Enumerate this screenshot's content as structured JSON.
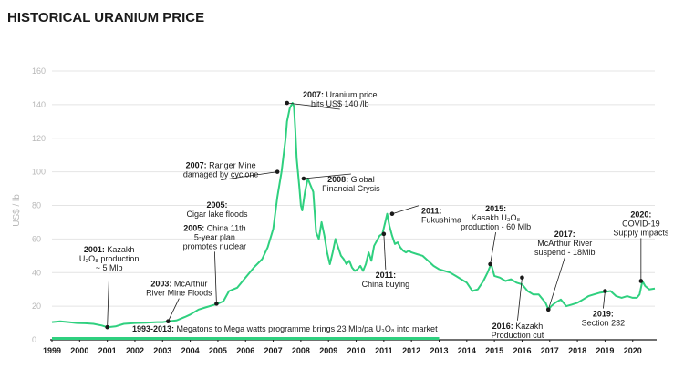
{
  "chart_data": {
    "type": "line",
    "title": "HISTORICAL URANIUM PRICE",
    "ylabel": "US$ / lb",
    "xlabel": "",
    "ylim": [
      0,
      160
    ],
    "yticks": [
      0,
      20,
      40,
      60,
      80,
      100,
      120,
      140,
      160
    ],
    "xticks": [
      "1999",
      "2000",
      "2001",
      "2002",
      "2003",
      "2004",
      "2005",
      "2006",
      "2007",
      "2008",
      "2009",
      "2010",
      "2011",
      "2012",
      "2013",
      "2014",
      "2015",
      "2016",
      "2017",
      "2018",
      "2019",
      "2020"
    ],
    "grid": "horizontal",
    "line_color": "#2fd07f",
    "series": [
      {
        "x": [
          1999.0,
          1999.3,
          1999.6,
          1999.9,
          2000.2,
          2000.5,
          2000.8,
          2001.0,
          2001.3,
          2001.6,
          2002.0,
          2002.4,
          2002.8,
          2003.0,
          2003.2,
          2003.5,
          2003.8,
          2004.0,
          2004.3,
          2004.6,
          2004.9,
          2005.0,
          2005.2,
          2005.4,
          2005.7,
          2006.0,
          2006.3,
          2006.6,
          2006.8,
          2007.0,
          2007.15,
          2007.3,
          2007.45,
          2007.5,
          2007.6,
          2007.7,
          2007.75,
          2007.8,
          2007.85,
          2007.95,
          2008.0,
          2008.05,
          2008.15,
          2008.25,
          2008.35,
          2008.45,
          2008.55,
          2008.65,
          2008.75,
          2008.85,
          2008.95,
          2009.05,
          2009.15,
          2009.25,
          2009.35,
          2009.45,
          2009.55,
          2009.65,
          2009.75,
          2009.85,
          2009.95,
          2010.05,
          2010.15,
          2010.25,
          2010.35,
          2010.45,
          2010.55,
          2010.65,
          2010.75,
          2010.85,
          2010.95,
          2011.05,
          2011.12,
          2011.2,
          2011.3,
          2011.4,
          2011.5,
          2011.6,
          2011.7,
          2011.8,
          2011.9,
          2012.0,
          2012.2,
          2012.4,
          2012.6,
          2012.8,
          2013.0,
          2013.2,
          2013.4,
          2013.6,
          2013.8,
          2014.0,
          2014.2,
          2014.4,
          2014.6,
          2014.75,
          2014.85,
          2014.9,
          2015.0,
          2015.2,
          2015.4,
          2015.6,
          2015.8,
          2016.0,
          2016.2,
          2016.4,
          2016.6,
          2016.75,
          2016.85,
          2016.95,
          2017.05,
          2017.2,
          2017.4,
          2017.6,
          2017.8,
          2018.0,
          2018.2,
          2018.4,
          2018.6,
          2018.8,
          2019.0,
          2019.2,
          2019.4,
          2019.6,
          2019.8,
          2020.0,
          2020.15,
          2020.25,
          2020.35,
          2020.45,
          2020.6,
          2020.8
        ],
        "values": [
          10.5,
          11,
          10.5,
          10,
          9.8,
          9.5,
          8.5,
          7.5,
          8,
          9.5,
          10,
          10.2,
          10.5,
          10.5,
          11,
          11.5,
          13.5,
          15,
          18,
          19.5,
          21,
          21.5,
          23,
          29,
          31,
          37,
          43,
          48,
          55,
          66,
          85,
          100,
          120,
          130,
          138,
          141,
          139,
          125,
          108,
          90,
          80,
          77,
          88,
          96,
          92,
          88,
          64,
          60,
          70,
          62,
          52,
          45,
          52,
          60,
          55,
          50,
          48,
          45,
          47,
          43,
          41,
          42,
          44,
          41,
          45,
          52,
          47,
          56,
          59,
          62,
          63,
          70,
          75,
          68,
          62,
          57,
          58,
          55,
          53,
          52,
          53,
          52,
          51,
          50,
          47,
          44,
          42,
          41,
          40,
          38,
          36,
          34,
          29,
          30,
          35,
          40,
          44,
          44,
          38,
          37,
          35,
          36,
          34,
          33,
          29,
          27,
          27,
          24,
          22,
          18,
          20,
          22,
          24,
          20,
          21,
          22,
          24,
          26,
          27,
          28,
          28.5,
          29,
          26,
          25,
          26,
          25,
          25,
          27,
          35,
          32,
          30,
          30.5
        ]
      }
    ],
    "shaded_period": {
      "x_start": 1999,
      "x_end": 2013,
      "label": "1993-2013: Megatons to Mega watts programme brings 23 Mlb/pa U₃O₈ into market"
    },
    "annotations": [
      {
        "x": 2001.0,
        "y": 7.5,
        "bold": "2001:",
        "lines": [
          "2001: Kazakh",
          "U₃O₈ production",
          "~ 5 Mlb"
        ]
      },
      {
        "x": 2003.2,
        "y": 11,
        "bold": "2003:",
        "lines": [
          "2003: McArthur",
          "River Mine Floods"
        ]
      },
      {
        "x": 2004.95,
        "y": 21.5,
        "bold": "2005:",
        "lines": [
          "2005: China 11th",
          "5-year plan",
          "promotes nuclear"
        ]
      },
      {
        "x": 2005.0,
        "y": null,
        "bold": "2005:",
        "lines": [
          "2005:",
          "Cigar lake floods"
        ]
      },
      {
        "x": 2007.15,
        "y": 100,
        "bold": "2007:",
        "lines": [
          "2007: Ranger Mine",
          "damaged by cyclone"
        ]
      },
      {
        "x": 2007.5,
        "y": 141,
        "bold": "2007:",
        "lines": [
          "2007: Uranium price",
          "hits US$ 140 /lb"
        ]
      },
      {
        "x": 2008.1,
        "y": 96,
        "bold": "2008:",
        "lines": [
          "2008: Global",
          "Financial Crysis"
        ]
      },
      {
        "x": 2011.0,
        "y": 63,
        "bold": "2011:",
        "lines": [
          "2011:",
          "China buying"
        ]
      },
      {
        "x": 2011.3,
        "y": 75,
        "bold": "2011:",
        "lines": [
          "2011:",
          "Fukushima"
        ]
      },
      {
        "x": 2014.85,
        "y": 45,
        "bold": "2015:",
        "lines": [
          "2015:",
          "Kasakh U₃O₈",
          "production - 60 Mlb"
        ]
      },
      {
        "x": 2016.0,
        "y": 37,
        "bold": "2016:",
        "lines": [
          "2016: Kazakh",
          "Production cut"
        ]
      },
      {
        "x": 2016.95,
        "y": 18,
        "bold": "2017:",
        "lines": [
          "2017:",
          "McArthur River",
          "suspend - 18Mlb"
        ]
      },
      {
        "x": 2019.0,
        "y": 29,
        "bold": "2019:",
        "lines": [
          "2019:",
          "Section 232"
        ]
      },
      {
        "x": 2020.3,
        "y": 35,
        "bold": "2020:",
        "lines": [
          "2020:",
          "COVID-19",
          "Supply impacts"
        ]
      }
    ]
  }
}
